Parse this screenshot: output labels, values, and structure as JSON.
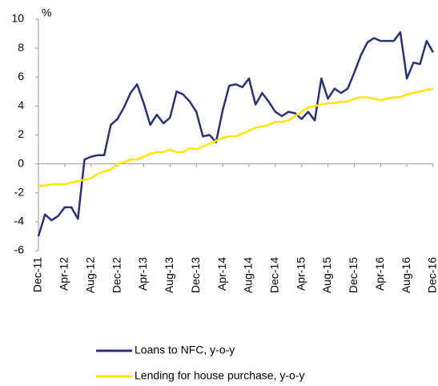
{
  "chart_data": {
    "type": "line",
    "y_unit": "%",
    "categories": [
      "Dec-11",
      null,
      null,
      null,
      "Apr-12",
      null,
      null,
      null,
      "Aug-12",
      null,
      null,
      null,
      "Dec-12",
      null,
      null,
      null,
      "Apr-13",
      null,
      null,
      null,
      "Aug-13",
      null,
      null,
      null,
      "Dec-13",
      null,
      null,
      null,
      "Apr-14",
      null,
      null,
      null,
      "Aug-14",
      null,
      null,
      null,
      "Dec-14",
      null,
      null,
      null,
      "Apr-15",
      null,
      null,
      null,
      "Aug-15",
      null,
      null,
      null,
      "Dec-15",
      null,
      null,
      null,
      "Apr-16",
      null,
      null,
      null,
      "Aug-16",
      null,
      null,
      null,
      "Dec-16"
    ],
    "series": [
      {
        "name": "Loans to NFC, y-o-y",
        "color": "#2b3175",
        "values": [
          -5.0,
          -3.5,
          -3.9,
          -3.6,
          -3.0,
          -3.0,
          -3.8,
          0.3,
          0.5,
          0.6,
          0.6,
          2.7,
          3.1,
          3.9,
          4.9,
          5.5,
          4.2,
          2.7,
          3.4,
          2.8,
          3.2,
          5.0,
          4.8,
          4.3,
          3.6,
          1.9,
          2.0,
          1.5,
          3.7,
          5.4,
          5.5,
          5.3,
          5.9,
          4.1,
          4.9,
          4.3,
          3.6,
          3.3,
          3.6,
          3.5,
          3.1,
          3.6,
          3.0,
          5.9,
          4.5,
          5.2,
          4.9,
          5.2,
          6.3,
          7.5,
          8.4,
          8.7,
          8.5,
          8.5,
          8.5,
          9.1,
          5.9,
          7.0,
          6.9,
          8.5,
          7.7
        ]
      },
      {
        "name": "Lending for house purchase, y-o-y",
        "color": "#ffe600",
        "values": [
          -1.5,
          -1.5,
          -1.4,
          -1.4,
          -1.4,
          -1.3,
          -1.2,
          -1.1,
          -1.0,
          -0.7,
          -0.5,
          -0.4,
          0.0,
          0.1,
          0.3,
          0.3,
          0.5,
          0.7,
          0.8,
          0.8,
          1.0,
          0.8,
          0.8,
          1.1,
          1.0,
          1.2,
          1.4,
          1.6,
          1.8,
          1.9,
          1.9,
          2.1,
          2.3,
          2.5,
          2.6,
          2.7,
          2.9,
          2.9,
          3.0,
          3.3,
          3.6,
          3.9,
          4.0,
          4.1,
          4.2,
          4.2,
          4.3,
          4.3,
          4.5,
          4.6,
          4.6,
          4.5,
          4.4,
          4.5,
          4.6,
          4.6,
          4.8,
          4.9,
          5.0,
          5.1,
          5.2
        ]
      }
    ],
    "ylim": [
      -6,
      10
    ],
    "yticks": [
      -6,
      -4,
      -2,
      0,
      2,
      4,
      6,
      8,
      10
    ],
    "grid": false,
    "legend": "bottom"
  }
}
